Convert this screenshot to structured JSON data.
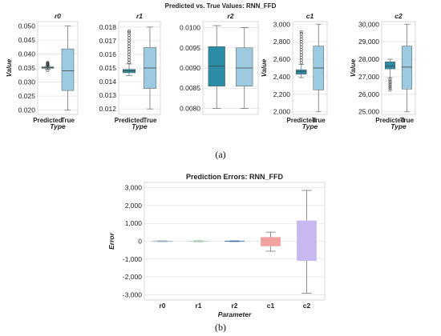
{
  "figure": {
    "top_title": "Predicted vs. True Values: RNN_FFD",
    "caption_a": "(a)",
    "caption_b": "(b)"
  },
  "chart_data": [
    {
      "type": "box",
      "title": "r0",
      "xlabel": "Type",
      "ylabel": "Value",
      "categories": [
        "Predicted",
        "True"
      ],
      "yticks": [
        0.02,
        0.025,
        0.03,
        0.035,
        0.04,
        0.045,
        0.05
      ],
      "ytick_labels": [
        "0.020",
        "0.025",
        "0.030",
        "0.035",
        "0.040",
        "0.045",
        "0.050"
      ],
      "ylim": [
        0.0185,
        0.0515
      ],
      "boxes": [
        {
          "whislo": 0.0345,
          "q1": 0.0349,
          "med": 0.0351,
          "q3": 0.0354,
          "whishi": 0.0358,
          "fliers": [
            0.0359,
            0.0361,
            0.0363,
            0.0365,
            0.0367,
            0.0369,
            0.0342
          ]
        },
        {
          "whislo": 0.02,
          "q1": 0.027,
          "med": 0.034,
          "q3": 0.0418,
          "whishi": 0.05,
          "fliers": []
        }
      ],
      "colors": [
        "#2b8ca6",
        "#9ccae0"
      ]
    },
    {
      "type": "box",
      "title": "r1",
      "xlabel": "Type",
      "ylabel": "",
      "categories": [
        "Predicted",
        "True"
      ],
      "yticks": [
        0.012,
        0.013,
        0.014,
        0.015,
        0.016,
        0.017,
        0.018
      ],
      "ytick_labels": [
        "0.012",
        "0.013",
        "0.014",
        "0.015",
        "0.016",
        "0.017",
        "0.018"
      ],
      "ylim": [
        0.0116,
        0.0184
      ],
      "boxes": [
        {
          "whislo": 0.01445,
          "q1": 0.01465,
          "med": 0.0148,
          "q3": 0.0149,
          "whishi": 0.0153,
          "fliers": [
            0.0154,
            0.0156,
            0.0158,
            0.016,
            0.0162,
            0.0164,
            0.0166,
            0.0168,
            0.017,
            0.0172,
            0.0174,
            0.0176,
            0.0177
          ]
        },
        {
          "whislo": 0.012,
          "q1": 0.0135,
          "med": 0.015,
          "q3": 0.0165,
          "whishi": 0.018,
          "fliers": []
        }
      ],
      "colors": [
        "#2b8ca6",
        "#9ccae0"
      ]
    },
    {
      "type": "box",
      "title": "r2",
      "xlabel": "",
      "ylabel": "",
      "categories": [
        "",
        ""
      ],
      "yticks": [
        0.008,
        0.0085,
        0.009,
        0.0095,
        0.01
      ],
      "ytick_labels": [
        "0.0080",
        "0.0085",
        "0.0090",
        "0.0095",
        "0.0100"
      ],
      "ylim": [
        0.00785,
        0.01015
      ],
      "boxes": [
        {
          "whislo": 0.008,
          "q1": 0.00855,
          "med": 0.00905,
          "q3": 0.00953,
          "whishi": 0.01005,
          "fliers": []
        },
        {
          "whislo": 0.008,
          "q1": 0.00855,
          "med": 0.009,
          "q3": 0.0095,
          "whishi": 0.01,
          "fliers": []
        }
      ],
      "colors": [
        "#2b8ca6",
        "#9ccae0"
      ]
    },
    {
      "type": "box",
      "title": "c1",
      "xlabel": "Type",
      "ylabel": "Value",
      "categories": [
        "Predicted",
        "True"
      ],
      "yticks": [
        2000,
        2200,
        2400,
        2600,
        2800,
        3000
      ],
      "ytick_labels": [
        "2,000",
        "2,200",
        "2,400",
        "2,600",
        "2,800",
        "3,000"
      ],
      "ylim": [
        1970,
        3030
      ],
      "boxes": [
        {
          "whislo": 2390,
          "q1": 2430,
          "med": 2460,
          "q3": 2480,
          "whishi": 2540,
          "fliers": [
            2560,
            2590,
            2620,
            2650,
            2680,
            2710,
            2740,
            2770,
            2800,
            2830,
            2860,
            2890,
            2910
          ]
        },
        {
          "whislo": 2000,
          "q1": 2250,
          "med": 2500,
          "q3": 2750,
          "whishi": 3000,
          "fliers": []
        }
      ],
      "colors": [
        "#2b8ca6",
        "#9ccae0"
      ]
    },
    {
      "type": "box",
      "title": "c2",
      "xlabel": "Type",
      "ylabel": "Value",
      "categories": [
        "Predicted",
        "True"
      ],
      "yticks": [
        25000,
        26000,
        27000,
        28000,
        29000,
        30000
      ],
      "ytick_labels": [
        "25,000",
        "26,000",
        "27,000",
        "28,000",
        "29,000",
        "30,000"
      ],
      "ylim": [
        24850,
        30150
      ],
      "boxes": [
        {
          "whislo": 26950,
          "q1": 27450,
          "med": 27600,
          "q3": 27850,
          "whishi": 28000,
          "fliers": [
            26850,
            26750,
            26650,
            26550,
            26450,
            26350,
            26250
          ]
        },
        {
          "whislo": 25000,
          "q1": 26300,
          "med": 27550,
          "q3": 28750,
          "whishi": 30000,
          "fliers": []
        }
      ],
      "colors": [
        "#2b8ca6",
        "#9ccae0"
      ]
    },
    {
      "type": "box",
      "title": "Prediction Errors: RNN_FFD",
      "xlabel": "Parameter",
      "ylabel": "Error",
      "categories": [
        "r0",
        "r1",
        "r2",
        "c1",
        "c2"
      ],
      "yticks": [
        -3000,
        -2000,
        -1000,
        0,
        1000,
        2000,
        3000
      ],
      "ytick_labels": [
        "-3,000",
        "-2,000",
        "-1,000",
        "0",
        "1,000",
        "2,000",
        "3,000"
      ],
      "ylim": [
        -3300,
        3300
      ],
      "boxes": [
        {
          "whislo": -20,
          "q1": -8,
          "med": 0,
          "q3": 8,
          "whishi": 20,
          "fliers": []
        },
        {
          "whislo": -20,
          "q1": -8,
          "med": 0,
          "q3": 8,
          "whishi": 20,
          "fliers": []
        },
        {
          "whislo": -25,
          "q1": -10,
          "med": 0,
          "q3": 10,
          "whishi": 25,
          "fliers": []
        },
        {
          "whislo": -560,
          "q1": -280,
          "med": -30,
          "q3": 230,
          "whishi": 510,
          "fliers": []
        },
        {
          "whislo": -2920,
          "q1": -1100,
          "med": -30,
          "q3": 1160,
          "whishi": 2850,
          "fliers": []
        }
      ],
      "colors": [
        "#8fb8d8",
        "#a8d8b0",
        "#3a7dc0",
        "#f2a0a0",
        "#c8b8f0"
      ]
    }
  ]
}
